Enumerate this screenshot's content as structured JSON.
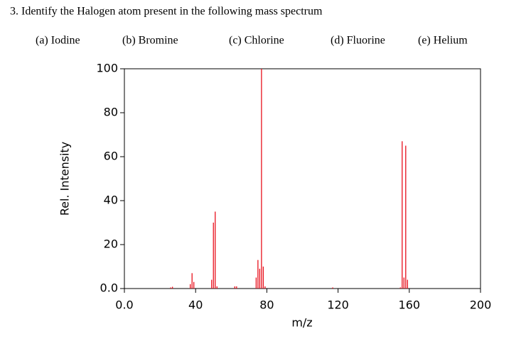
{
  "question": {
    "text": "3.  Identify the Halogen atom present in the following mass spectrum",
    "options": [
      "(a) Iodine",
      "(b) Bromine",
      "(c) Chlorine",
      "(d) Fluorine",
      "(e) Helium"
    ]
  },
  "chart_data": {
    "type": "stem",
    "color": "#e8101c",
    "xlabel": "m/z",
    "ylabel": "Rel. Intensity",
    "x": [
      26,
      27,
      37,
      38,
      39,
      49,
      50,
      51,
      52,
      62,
      63,
      74,
      75,
      76,
      77,
      78,
      79,
      117,
      155,
      156,
      157,
      158,
      159
    ],
    "values": [
      0.5,
      0.8,
      2,
      7,
      3,
      4,
      30,
      35,
      1,
      1,
      1,
      5,
      13,
      9,
      100,
      10,
      1,
      0.5,
      0.5,
      67,
      5,
      65,
      4
    ],
    "xlim": [
      0,
      200
    ],
    "ylim": [
      0,
      100
    ],
    "xticks": [
      {
        "value": 0,
        "label": "0.0"
      },
      40,
      80,
      120,
      160,
      200
    ],
    "yticks": [
      {
        "value": 0,
        "label": "0.0"
      },
      20,
      40,
      60,
      80,
      100
    ]
  }
}
